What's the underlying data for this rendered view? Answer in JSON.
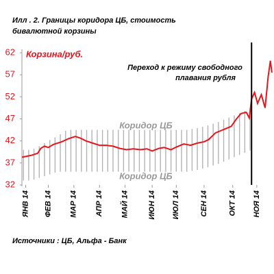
{
  "chart_data": {
    "type": "line",
    "title_lines": [
      "Илл . 2.   Границы  коридора  ЦБ, стоимость",
      "бивалютной корзины"
    ],
    "source": "Источники : ЦБ, Альфа - Банк",
    "annotation_lines": [
      "Переход к режиму свободного",
      "плавания рубля"
    ],
    "event_x": 305,
    "corridor_labels": [
      "Коридор ЦБ",
      "Коридор ЦБ"
    ],
    "xlim": [
      0,
      333
    ],
    "xticks": [
      {
        "value": 5,
        "label": "ЯНВ 14"
      },
      {
        "value": 35,
        "label": "ФЕВ 14"
      },
      {
        "value": 69,
        "label": "МАР 14"
      },
      {
        "value": 103,
        "label": "АПР 14"
      },
      {
        "value": 137,
        "label": "МАЙ 14"
      },
      {
        "value": 173,
        "label": "ИЮН 14"
      },
      {
        "value": 205,
        "label": "ИЮЛ 14"
      },
      {
        "value": 242,
        "label": "СЕН 14"
      },
      {
        "value": 280,
        "label": "ОКТ 14"
      },
      {
        "value": 312,
        "label": "НОЯ 14"
      }
    ],
    "ylim": [
      32,
      62
    ],
    "yticks": [
      32,
      37,
      42,
      47,
      52,
      57,
      62
    ],
    "series": [
      {
        "name": "Корзина/руб.",
        "color": "#e8141b",
        "x": [
          0,
          12,
          21,
          25,
          30,
          35,
          42,
          53,
          62,
          71,
          78,
          85,
          94,
          103,
          112,
          121,
          130,
          139,
          148,
          157,
          166,
          173,
          182,
          189,
          198,
          205,
          215,
          224,
          233,
          242,
          248,
          257,
          264,
          271,
          278,
          285,
          291,
          298,
          302,
          305,
          309,
          313,
          318,
          323,
          327,
          330,
          332
        ],
        "values": [
          38.3,
          38.7,
          39.2,
          40.3,
          40.8,
          40.5,
          41.2,
          41.8,
          42.5,
          43.0,
          42.6,
          42.0,
          41.5,
          41.0,
          41.0,
          40.8,
          40.3,
          40.0,
          40.2,
          40.0,
          40.2,
          39.7,
          40.3,
          40.5,
          40.0,
          40.6,
          41.3,
          41.0,
          41.5,
          41.8,
          42.3,
          43.8,
          44.3,
          44.8,
          45.3,
          47.0,
          48.2,
          48.5,
          47.2,
          51.5,
          53.0,
          50.5,
          52.5,
          49.5,
          56.5,
          60.2,
          57.5
        ]
      }
    ],
    "corridor": {
      "color": "#b3b3b3",
      "x": [
        2,
        9,
        16,
        23,
        30,
        37,
        44,
        51,
        58,
        65,
        72,
        79,
        86,
        93,
        100,
        107,
        114,
        121,
        128,
        135,
        142,
        149,
        156,
        163,
        170,
        177,
        184,
        191,
        198,
        205,
        212,
        219,
        226,
        233,
        240,
        247,
        254,
        261,
        268,
        275,
        282,
        289,
        296,
        303
      ],
      "upper": [
        40,
        40,
        40.2,
        40.8,
        41.5,
        42.2,
        42.8,
        43.5,
        44.3,
        44.5,
        44.5,
        44.5,
        44.5,
        44.5,
        44.5,
        44.5,
        44.5,
        44.5,
        44.5,
        44.5,
        44.5,
        44.5,
        44.5,
        44.5,
        44.5,
        44.5,
        44.5,
        44.5,
        44.5,
        44.5,
        44.5,
        44.5,
        44.7,
        44.9,
        45.2,
        45.5,
        45.9,
        46.3,
        46.8,
        47.3,
        47.8,
        48.3,
        48.8,
        49.3
      ],
      "lower": [
        33,
        33,
        33.2,
        33.6,
        34.0,
        34.4,
        34.8,
        35.0,
        35.0,
        35,
        35,
        35,
        35,
        35,
        35,
        35,
        35,
        35,
        35,
        35,
        35,
        35,
        35,
        35,
        35,
        35,
        35,
        35,
        35,
        35,
        35,
        35,
        35.2,
        35.4,
        35.7,
        36.0,
        36.4,
        36.8,
        37.3,
        37.8,
        38.3,
        38.8,
        39.3,
        39.8
      ]
    }
  }
}
